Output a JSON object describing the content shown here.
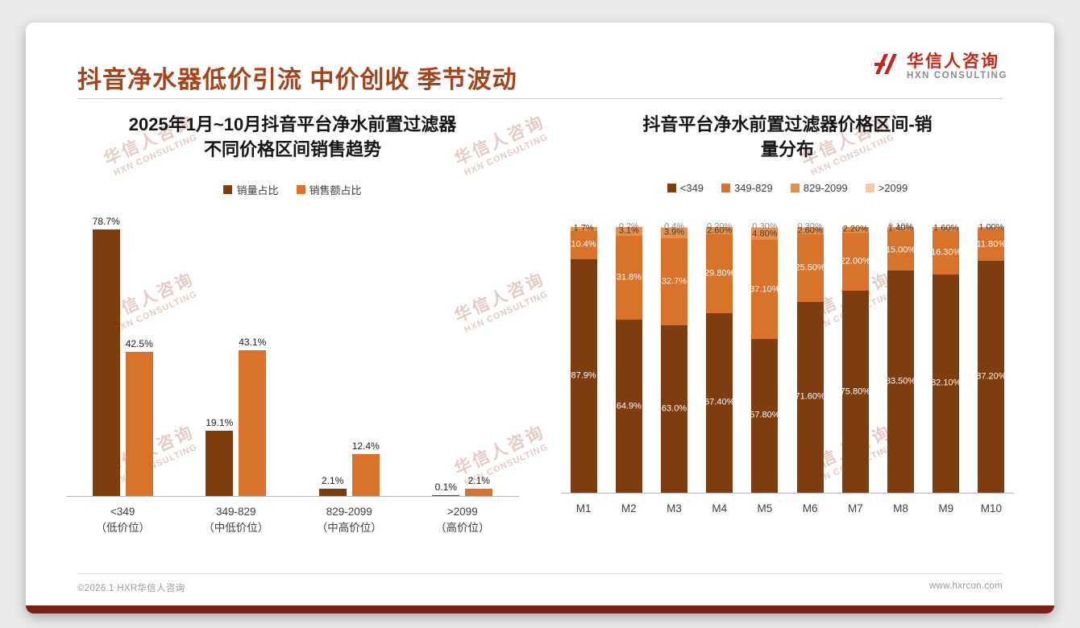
{
  "page": {
    "title": "抖音净水器低价引流 中价创收 季节波动",
    "logo": {
      "cn": "华信人咨询",
      "en": "HXN CONSULTING"
    },
    "watermark": {
      "cn": "华信人咨询",
      "en": "HXN CONSULTING"
    },
    "footer": {
      "left": "©2026.1 HXR华信人咨询",
      "right": "www.hxrcon.com"
    }
  },
  "colors": {
    "title_text": "#a6431a",
    "logo_red": "#c3261b",
    "bottom_strip": "#7a1f12",
    "dark_brown": "#7e3d0e",
    "orange": "#d9732b",
    "light_orange": "#e6904f",
    "pale_orange": "#f4cba6"
  },
  "chart_data": [
    {
      "type": "bar",
      "stacked": false,
      "title": "2025年1月~10月抖音平台净水前置过滤器\n不同价格区间销售趋势",
      "categories": [
        "<349\n（低价位）",
        "349-829\n（中低价位）",
        "829-2099\n（中高价位）",
        ">2099\n（高价位）"
      ],
      "series": [
        {
          "name": "销量占比",
          "color": "#7e3d0e",
          "values": [
            78.7,
            19.1,
            2.1,
            0.1
          ],
          "labels": [
            "78.7%",
            "19.1%",
            "2.1%",
            "0.1%"
          ]
        },
        {
          "name": "销售额占比",
          "color": "#d9732b",
          "values": [
            42.5,
            43.1,
            12.4,
            2.1
          ],
          "labels": [
            "42.5%",
            "43.1%",
            "12.4%",
            "2.1%"
          ]
        }
      ],
      "xlabel": "",
      "ylabel": "",
      "unit": "%",
      "ylim": [
        0,
        83
      ],
      "grid": false,
      "legend_position": "top"
    },
    {
      "type": "bar",
      "stacked": true,
      "percent": true,
      "title": "抖音平台净水前置过滤器价格区间-销\n量分布",
      "categories": [
        "M1",
        "M2",
        "M3",
        "M4",
        "M5",
        "M6",
        "M7",
        "M8",
        "M9",
        "M10"
      ],
      "series": [
        {
          "name": "<349",
          "color": "#7e3d0e",
          "label_color": "#ffffff",
          "values": [
            87.9,
            64.9,
            63.0,
            67.4,
            57.8,
            71.6,
            75.8,
            83.5,
            82.1,
            87.2
          ],
          "labels": [
            "87.9%",
            "64.9%",
            "63.0%",
            "67.40%",
            "57.80%",
            "71.60%",
            "75.80%",
            "83.50%",
            "82.10%",
            "87.20%"
          ]
        },
        {
          "name": "349-829",
          "color": "#d9732b",
          "label_color": "#ffffff",
          "values": [
            10.4,
            31.8,
            32.7,
            29.8,
            37.1,
            25.5,
            22.0,
            15.0,
            16.3,
            11.8
          ],
          "labels": [
            "10.4%",
            "31.8%",
            "32.7%",
            "29.80%",
            "37.10%",
            "25.50%",
            "22.00%",
            "15.00%",
            "16.30%",
            "11.80%"
          ]
        },
        {
          "name": "829-2099",
          "color": "#e6904f",
          "label_color": "#3a3a3a",
          "values": [
            1.7,
            3.1,
            3.9,
            2.6,
            4.8,
            2.6,
            2.2,
            1.4,
            1.6,
            1.0
          ],
          "labels": [
            "1.7%",
            "3.1%",
            "3.9%",
            "2.60%",
            "4.80%",
            "2.60%",
            "2.20%",
            "1.40%",
            "1.60%",
            "1.00%"
          ]
        },
        {
          "name": ">2099",
          "color": "#f4cba6",
          "label_color": "#8a8a8a",
          "values": [
            0.0,
            0.2,
            0.4,
            0.2,
            0.3,
            0.3,
            0.0,
            0.1,
            0.0,
            0.0
          ],
          "labels": [
            "",
            "0.2%",
            "0.4%",
            "0.20%",
            "0.30%",
            "0.30%",
            "",
            "0.10%",
            "",
            ""
          ]
        }
      ],
      "xlabel": "",
      "ylabel": "",
      "unit": "%",
      "ylim": [
        0,
        100
      ],
      "grid": false,
      "legend_position": "top"
    }
  ]
}
